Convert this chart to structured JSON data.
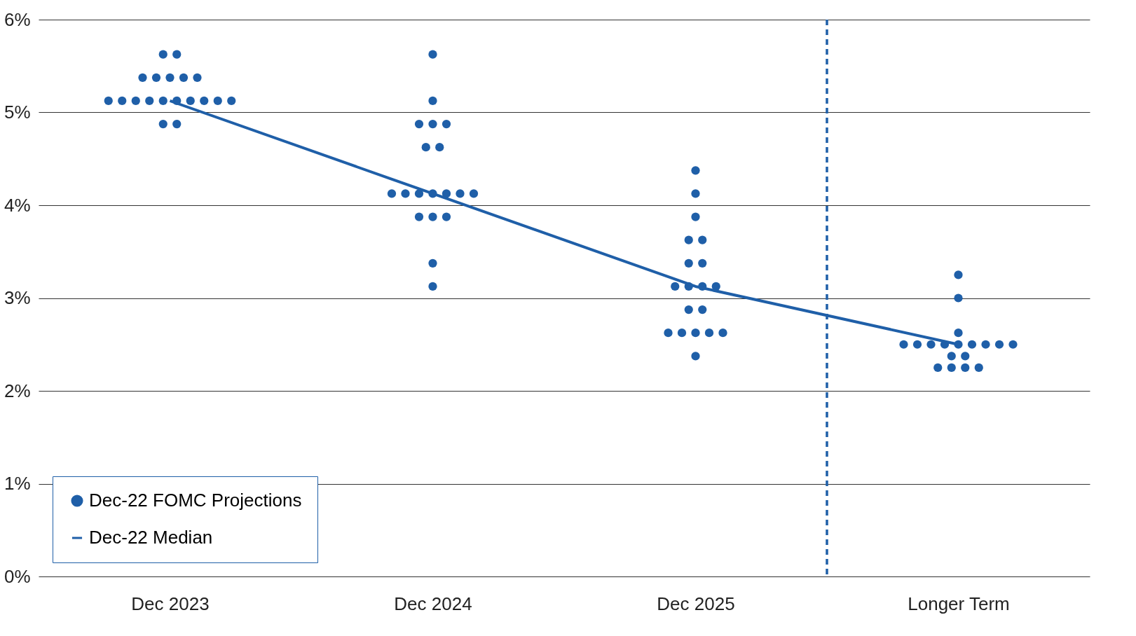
{
  "chart_data": {
    "type": "scatter",
    "categories": [
      "Dec 2023",
      "Dec 2024",
      "Dec 2025",
      "Longer Term"
    ],
    "series": [
      {
        "name": "Dec-22 FOMC Projections",
        "color": "#1f5fa8",
        "x": [
          "Dec 2023",
          "Dec 2023",
          "Dec 2023",
          "Dec 2023",
          "Dec 2023",
          "Dec 2023",
          "Dec 2023",
          "Dec 2023",
          "Dec 2023",
          "Dec 2023",
          "Dec 2023",
          "Dec 2023",
          "Dec 2023",
          "Dec 2023",
          "Dec 2023",
          "Dec 2023",
          "Dec 2023",
          "Dec 2023",
          "Dec 2023",
          "Dec 2024",
          "Dec 2024",
          "Dec 2024",
          "Dec 2024",
          "Dec 2024",
          "Dec 2024",
          "Dec 2024",
          "Dec 2024",
          "Dec 2024",
          "Dec 2024",
          "Dec 2024",
          "Dec 2024",
          "Dec 2024",
          "Dec 2024",
          "Dec 2024",
          "Dec 2024",
          "Dec 2024",
          "Dec 2024",
          "Dec 2024",
          "Dec 2025",
          "Dec 2025",
          "Dec 2025",
          "Dec 2025",
          "Dec 2025",
          "Dec 2025",
          "Dec 2025",
          "Dec 2025",
          "Dec 2025",
          "Dec 2025",
          "Dec 2025",
          "Dec 2025",
          "Dec 2025",
          "Dec 2025",
          "Dec 2025",
          "Dec 2025",
          "Dec 2025",
          "Dec 2025",
          "Dec 2025",
          "Longer Term",
          "Longer Term",
          "Longer Term",
          "Longer Term",
          "Longer Term",
          "Longer Term",
          "Longer Term",
          "Longer Term",
          "Longer Term",
          "Longer Term",
          "Longer Term",
          "Longer Term",
          "Longer Term",
          "Longer Term",
          "Longer Term",
          "Longer Term",
          "Longer Term",
          "Longer Term"
        ],
        "values": [
          5.625,
          5.625,
          5.375,
          5.375,
          5.375,
          5.375,
          5.375,
          5.125,
          5.125,
          5.125,
          5.125,
          5.125,
          5.125,
          5.125,
          5.125,
          5.125,
          5.125,
          4.875,
          4.875,
          5.625,
          5.125,
          4.875,
          4.875,
          4.875,
          4.625,
          4.625,
          4.125,
          4.125,
          4.125,
          4.125,
          4.125,
          4.125,
          4.125,
          3.875,
          3.875,
          3.875,
          3.375,
          3.125,
          4.375,
          4.125,
          3.875,
          3.625,
          3.625,
          3.375,
          3.375,
          3.125,
          3.125,
          3.125,
          3.125,
          2.875,
          2.875,
          2.625,
          2.625,
          2.625,
          2.625,
          2.625,
          2.375,
          3.25,
          3.0,
          2.625,
          2.5,
          2.5,
          2.5,
          2.5,
          2.5,
          2.5,
          2.5,
          2.5,
          2.5,
          2.375,
          2.375,
          2.25,
          2.25,
          2.25,
          2.25
        ]
      },
      {
        "name": "Dec-22  Median",
        "type": "line",
        "marker": "none",
        "color": "#1f5fa8",
        "values": [
          5.125,
          4.125,
          3.125,
          2.5
        ]
      }
    ],
    "ylim": [
      0,
      6
    ],
    "yticks": [
      {
        "value": 0,
        "label": "0%"
      },
      {
        "value": 1,
        "label": "1%"
      },
      {
        "value": 2,
        "label": "2%"
      },
      {
        "value": 3,
        "label": "3%"
      },
      {
        "value": 4,
        "label": "4%"
      },
      {
        "value": 5,
        "label": "5%"
      },
      {
        "value": 6,
        "label": "6%"
      }
    ],
    "grid": "y",
    "legend": "bottom left",
    "marker": "circle",
    "ref_lines": [
      {
        "axis": "x",
        "value": "Longer Term",
        "color": "#1f5fa8",
        "line_style": "dashed"
      }
    ]
  }
}
